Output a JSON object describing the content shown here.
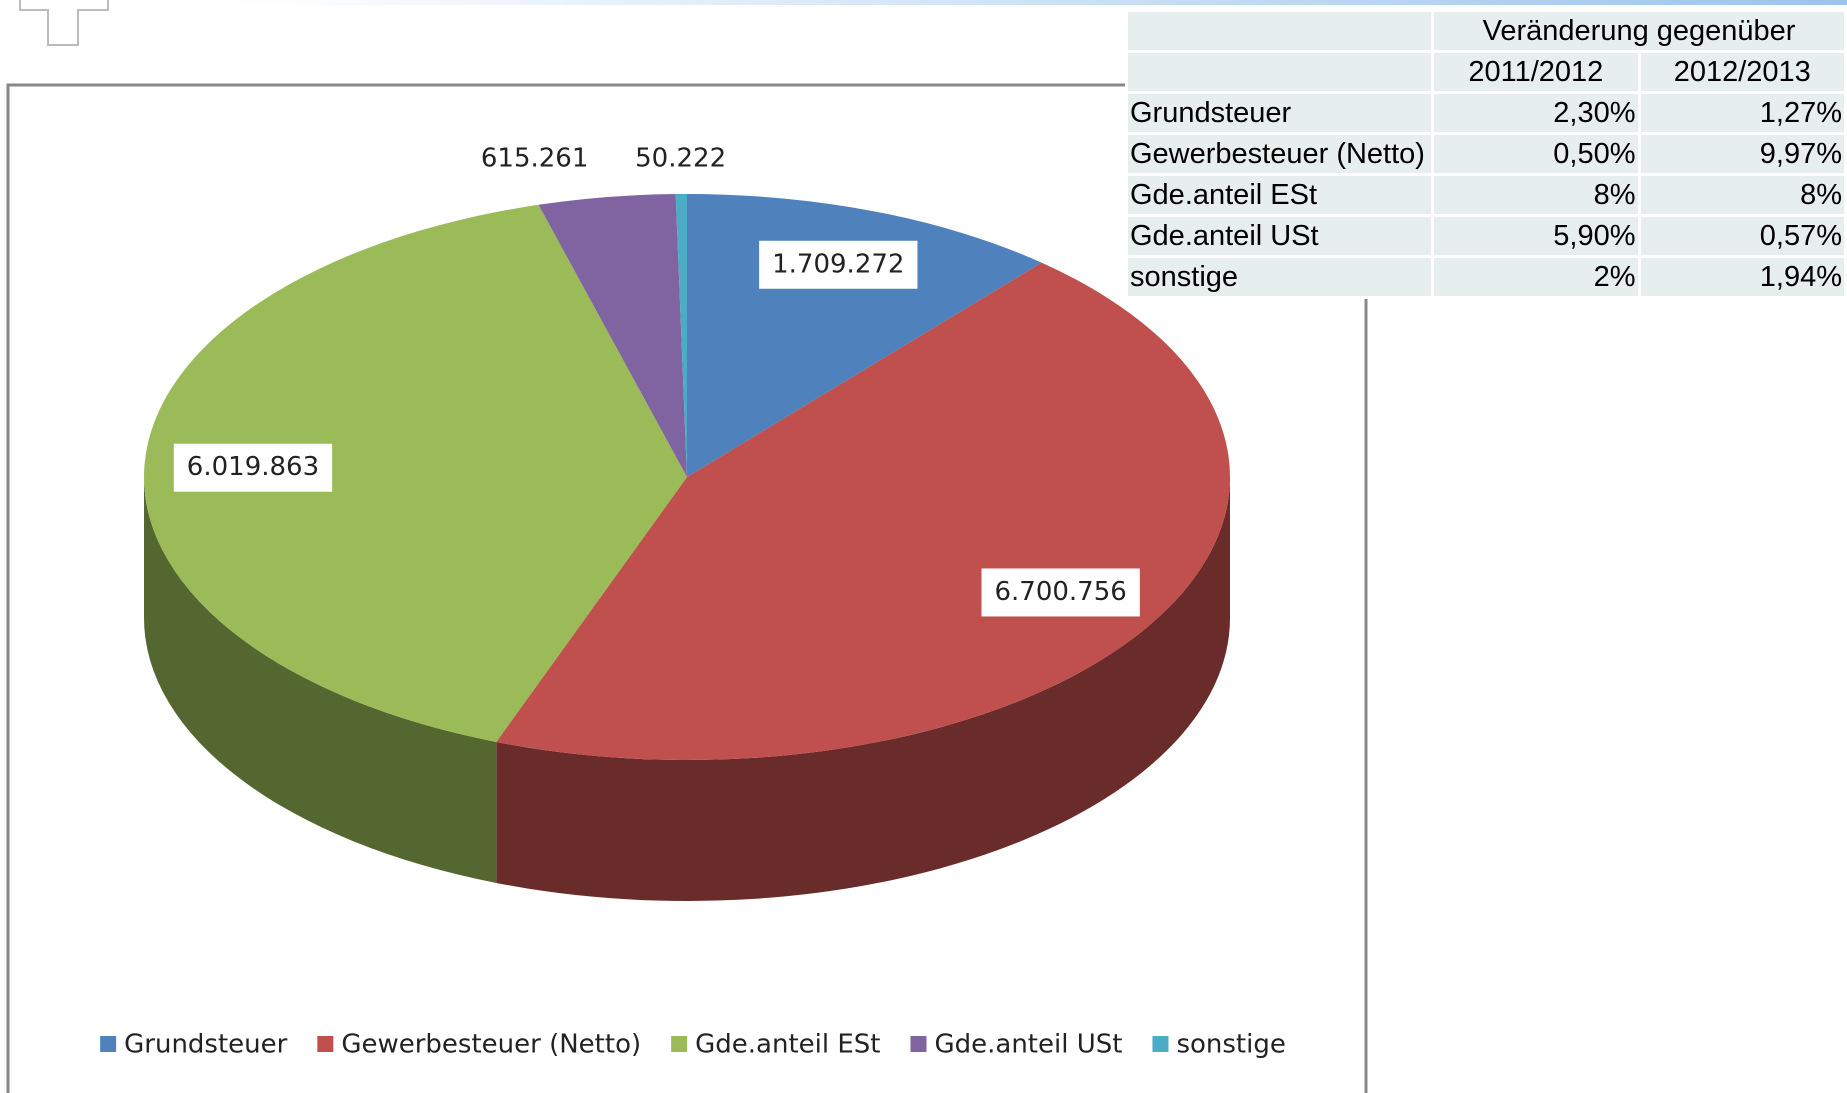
{
  "chart_data": {
    "type": "pie",
    "categories": [
      "Grundsteuer",
      "Gewerbesteuer (Netto)",
      "Gde.anteil ESt",
      "Gde.anteil USt",
      "sonstige"
    ],
    "values": [
      1709272,
      6700756,
      6019863,
      615261,
      50222
    ],
    "value_labels": [
      "1.709.272",
      "6.700.756",
      "6.019.863",
      "615.261",
      "50.222"
    ],
    "colors": [
      "#4f81bd",
      "#c0504d",
      "#9bbb59",
      "#8064a2",
      "#4bacc6"
    ],
    "legend": "bottom"
  },
  "table": {
    "header": "Veränderung gegenüber",
    "columns": [
      "2011/2012",
      "2012/2013"
    ],
    "rows": [
      [
        "Grundsteuer",
        "2,30%",
        "1,27%"
      ],
      [
        "Gewerbesteuer (Netto)",
        "0,50%",
        "9,97%"
      ],
      [
        "Gde.anteil ESt",
        "8%",
        "8%"
      ],
      [
        "Gde.anteil USt",
        "5,90%",
        "0,57%"
      ],
      [
        "sonstige",
        "2%",
        "1,94%"
      ]
    ]
  }
}
